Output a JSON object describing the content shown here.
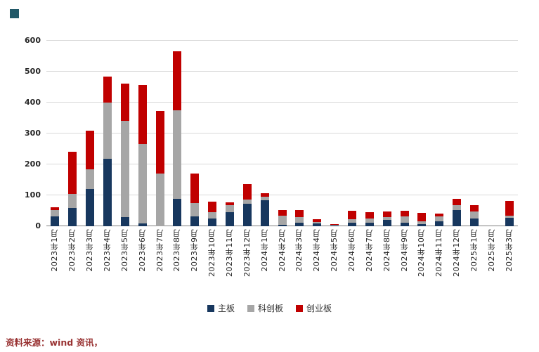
{
  "figure": {
    "accent_square_color": "#215968"
  },
  "source": {
    "text": "资料来源：wind 资讯，",
    "color": "#993333"
  },
  "chart_data": {
    "type": "bar",
    "stacked": true,
    "title": "",
    "xlabel": "",
    "ylabel": "",
    "ylim": [
      0,
      600
    ],
    "yticks": [
      0,
      100,
      200,
      300,
      400,
      500,
      600
    ],
    "grid": true,
    "legend_position": "bottom",
    "categories": [
      "2023年1月",
      "2023年2月",
      "2023年3月",
      "2023年4月",
      "2023年5月",
      "2023年6月",
      "2023年7月",
      "2023年8月",
      "2023年9月",
      "2023年10月",
      "2023年11月",
      "2023年12月",
      "2024年1月",
      "2024年2月",
      "2024年3月",
      "2024年4月",
      "2024年5月",
      "2024年6月",
      "2024年7月",
      "2024年8月",
      "2024年9月",
      "2024年10月",
      "2024年11月",
      "2024年12月",
      "2025年1月",
      "2025年2月",
      "2025年3月"
    ],
    "series": [
      {
        "name": "主板",
        "color": "#17375E",
        "values": [
          32,
          60,
          120,
          218,
          30,
          8,
          0,
          88,
          32,
          25,
          45,
          73,
          84,
          5,
          11,
          8,
          2,
          11,
          11,
          20,
          11,
          7,
          16,
          52,
          25,
          0,
          27
        ]
      },
      {
        "name": "科创板",
        "color": "#A6A6A6",
        "values": [
          20,
          45,
          65,
          182,
          312,
          258,
          170,
          287,
          43,
          20,
          23,
          13,
          11,
          29,
          18,
          6,
          2,
          11,
          14,
          9,
          20,
          9,
          16,
          16,
          23,
          0,
          7
        ]
      },
      {
        "name": "创业板",
        "color": "#C00000",
        "values": [
          10,
          135,
          125,
          85,
          120,
          190,
          202,
          190,
          95,
          35,
          9,
          50,
          12,
          18,
          23,
          9,
          3,
          28,
          20,
          19,
          19,
          27,
          9,
          21,
          20,
          0,
          48
        ]
      }
    ]
  }
}
